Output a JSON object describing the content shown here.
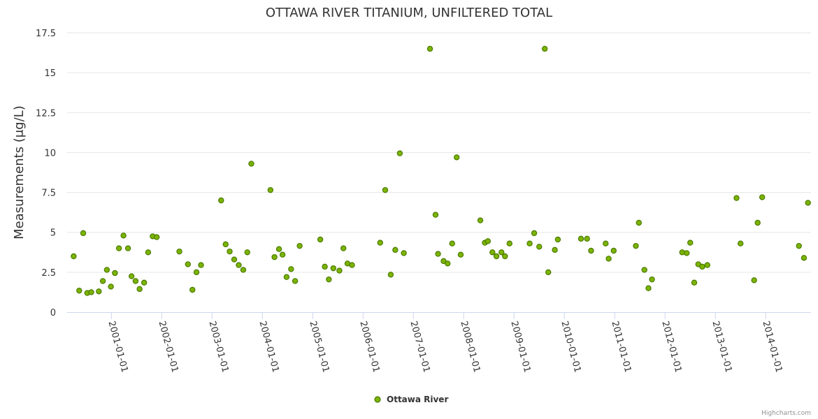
{
  "chart_data": {
    "type": "scatter",
    "title": "OTTAWA RIVER TITANIUM, UNFILTERED TOTAL",
    "xlabel": "",
    "ylabel": "Measurements (μg/L)",
    "ylim": [
      0,
      17.5
    ],
    "yticks": [
      "0",
      "2.5",
      "5",
      "7.5",
      "10",
      "12.5",
      "15",
      "17.5"
    ],
    "xlim": [
      2000.12,
      2014.9
    ],
    "xticks": [
      {
        "label": "2001-01-01",
        "year": 2001
      },
      {
        "label": "2002-01-01",
        "year": 2002
      },
      {
        "label": "2003-01-01",
        "year": 2003
      },
      {
        "label": "2004-01-01",
        "year": 2004
      },
      {
        "label": "2005-01-01",
        "year": 2005
      },
      {
        "label": "2006-01-01",
        "year": 2006
      },
      {
        "label": "2007-01-01",
        "year": 2007
      },
      {
        "label": "2008-01-01",
        "year": 2008
      },
      {
        "label": "2009-01-01",
        "year": 2009
      },
      {
        "label": "2010-01-01",
        "year": 2010
      },
      {
        "label": "2011-01-01",
        "year": 2011
      },
      {
        "label": "2012-01-01",
        "year": 2012
      },
      {
        "label": "2013-01-01",
        "year": 2013
      },
      {
        "label": "2014-01-01",
        "year": 2014
      }
    ],
    "legend_position": "bottom-center",
    "series": [
      {
        "name": "Ottawa River",
        "color": "#7cb400",
        "stroke": "#4a7a00",
        "points": [
          [
            2000.25,
            3.5
          ],
          [
            2000.36,
            1.35
          ],
          [
            2000.44,
            4.95
          ],
          [
            2000.52,
            1.2
          ],
          [
            2000.6,
            1.25
          ],
          [
            2000.75,
            1.3
          ],
          [
            2000.83,
            1.95
          ],
          [
            2000.91,
            2.65
          ],
          [
            2000.99,
            1.6
          ],
          [
            2001.07,
            2.45
          ],
          [
            2001.15,
            4.0
          ],
          [
            2001.24,
            4.8
          ],
          [
            2001.33,
            4.0
          ],
          [
            2001.4,
            2.25
          ],
          [
            2001.48,
            1.95
          ],
          [
            2001.56,
            1.45
          ],
          [
            2001.65,
            1.85
          ],
          [
            2001.73,
            3.75
          ],
          [
            2001.82,
            4.75
          ],
          [
            2001.9,
            4.7
          ],
          [
            2002.35,
            3.8
          ],
          [
            2002.52,
            3.0
          ],
          [
            2002.61,
            1.4
          ],
          [
            2002.69,
            2.5
          ],
          [
            2002.78,
            2.95
          ],
          [
            2003.18,
            7.0
          ],
          [
            2003.27,
            4.25
          ],
          [
            2003.35,
            3.8
          ],
          [
            2003.44,
            3.3
          ],
          [
            2003.53,
            2.95
          ],
          [
            2003.62,
            2.65
          ],
          [
            2003.7,
            3.75
          ],
          [
            2003.78,
            9.3
          ],
          [
            2004.16,
            7.65
          ],
          [
            2004.24,
            3.45
          ],
          [
            2004.33,
            3.95
          ],
          [
            2004.4,
            3.6
          ],
          [
            2004.48,
            2.2
          ],
          [
            2004.57,
            2.7
          ],
          [
            2004.65,
            1.95
          ],
          [
            2004.74,
            4.15
          ],
          [
            2005.15,
            4.55
          ],
          [
            2005.24,
            2.85
          ],
          [
            2005.32,
            2.05
          ],
          [
            2005.41,
            2.75
          ],
          [
            2005.53,
            2.6
          ],
          [
            2005.61,
            4.0
          ],
          [
            2005.69,
            3.05
          ],
          [
            2005.78,
            2.95
          ],
          [
            2006.34,
            4.35
          ],
          [
            2006.44,
            7.65
          ],
          [
            2006.55,
            2.35
          ],
          [
            2006.64,
            3.9
          ],
          [
            2006.73,
            9.95
          ],
          [
            2006.81,
            3.7
          ],
          [
            2007.33,
            16.5
          ],
          [
            2007.44,
            6.1
          ],
          [
            2007.49,
            3.65
          ],
          [
            2007.6,
            3.2
          ],
          [
            2007.68,
            3.05
          ],
          [
            2007.77,
            4.3
          ],
          [
            2007.86,
            9.7
          ],
          [
            2007.94,
            3.6
          ],
          [
            2008.33,
            5.75
          ],
          [
            2008.42,
            4.35
          ],
          [
            2008.48,
            4.45
          ],
          [
            2008.57,
            3.75
          ],
          [
            2008.65,
            3.5
          ],
          [
            2008.75,
            3.75
          ],
          [
            2008.82,
            3.5
          ],
          [
            2008.91,
            4.3
          ],
          [
            2009.31,
            4.3
          ],
          [
            2009.4,
            4.95
          ],
          [
            2009.5,
            4.1
          ],
          [
            2009.61,
            16.5
          ],
          [
            2009.68,
            2.5
          ],
          [
            2009.81,
            3.9
          ],
          [
            2009.87,
            4.55
          ],
          [
            2010.33,
            4.6
          ],
          [
            2010.45,
            4.6
          ],
          [
            2010.53,
            3.85
          ],
          [
            2010.82,
            4.3
          ],
          [
            2010.88,
            3.35
          ],
          [
            2010.98,
            3.85
          ],
          [
            2011.42,
            4.15
          ],
          [
            2011.48,
            5.6
          ],
          [
            2011.59,
            2.65
          ],
          [
            2011.67,
            1.5
          ],
          [
            2011.74,
            2.05
          ],
          [
            2012.34,
            3.75
          ],
          [
            2012.43,
            3.7
          ],
          [
            2012.5,
            4.35
          ],
          [
            2012.58,
            1.85
          ],
          [
            2012.66,
            3.0
          ],
          [
            2012.74,
            2.85
          ],
          [
            2012.84,
            2.95
          ],
          [
            2013.42,
            7.15
          ],
          [
            2013.5,
            4.3
          ],
          [
            2013.77,
            2.0
          ],
          [
            2013.84,
            5.6
          ],
          [
            2013.93,
            7.2
          ],
          [
            2014.66,
            4.15
          ],
          [
            2014.76,
            3.4
          ],
          [
            2014.84,
            6.85
          ]
        ]
      }
    ]
  },
  "credit": "Highcharts.com"
}
